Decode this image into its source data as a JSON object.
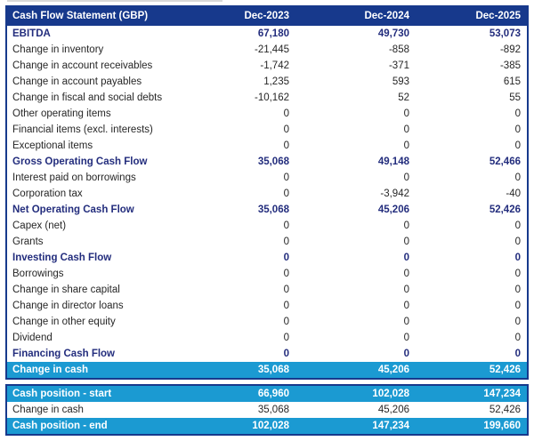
{
  "header": {
    "title": "Cash Flow Statement (GBP)",
    "columns": [
      "Dec-2023",
      "Dec-2024",
      "Dec-2025"
    ]
  },
  "rows": [
    {
      "label": "EBITDA",
      "values": [
        "67,180",
        "49,730",
        "53,073"
      ],
      "style": "bold"
    },
    {
      "label": "Change in inventory",
      "values": [
        "-21,445",
        "-858",
        "-892"
      ],
      "style": "normal"
    },
    {
      "label": "Change in account receivables",
      "values": [
        "-1,742",
        "-371",
        "-385"
      ],
      "style": "normal"
    },
    {
      "label": "Change in account payables",
      "values": [
        "1,235",
        "593",
        "615"
      ],
      "style": "normal"
    },
    {
      "label": "Change in fiscal and social debts",
      "values": [
        "-10,162",
        "52",
        "55"
      ],
      "style": "normal"
    },
    {
      "label": "Other operating items",
      "values": [
        "0",
        "0",
        "0"
      ],
      "style": "normal"
    },
    {
      "label": "Financial items (excl. interests)",
      "values": [
        "0",
        "0",
        "0"
      ],
      "style": "normal"
    },
    {
      "label": "Exceptional items",
      "values": [
        "0",
        "0",
        "0"
      ],
      "style": "normal"
    },
    {
      "label": "Gross Operating Cash Flow",
      "values": [
        "35,068",
        "49,148",
        "52,466"
      ],
      "style": "bold"
    },
    {
      "label": "Interest paid on borrowings",
      "values": [
        "0",
        "0",
        "0"
      ],
      "style": "normal"
    },
    {
      "label": "Corporation tax",
      "values": [
        "0",
        "-3,942",
        "-40"
      ],
      "style": "normal"
    },
    {
      "label": "Net Operating Cash Flow",
      "values": [
        "35,068",
        "45,206",
        "52,426"
      ],
      "style": "bold"
    },
    {
      "label": "Capex (net)",
      "values": [
        "0",
        "0",
        "0"
      ],
      "style": "normal"
    },
    {
      "label": "Grants",
      "values": [
        "0",
        "0",
        "0"
      ],
      "style": "normal"
    },
    {
      "label": "Investing Cash Flow",
      "values": [
        "0",
        "0",
        "0"
      ],
      "style": "bold"
    },
    {
      "label": "Borrowings",
      "values": [
        "0",
        "0",
        "0"
      ],
      "style": "normal"
    },
    {
      "label": "Change in share capital",
      "values": [
        "0",
        "0",
        "0"
      ],
      "style": "normal"
    },
    {
      "label": "Change in director loans",
      "values": [
        "0",
        "0",
        "0"
      ],
      "style": "normal"
    },
    {
      "label": "Change in other equity",
      "values": [
        "0",
        "0",
        "0"
      ],
      "style": "normal"
    },
    {
      "label": "Dividend",
      "values": [
        "0",
        "0",
        "0"
      ],
      "style": "normal"
    },
    {
      "label": "Financing Cash Flow",
      "values": [
        "0",
        "0",
        "0"
      ],
      "style": "bold"
    },
    {
      "label": "Change in cash",
      "values": [
        "35,068",
        "45,206",
        "52,426"
      ],
      "style": "highlight"
    }
  ],
  "summary_rows": [
    {
      "label": "Cash position - start",
      "values": [
        "66,960",
        "102,028",
        "147,234"
      ],
      "style": "highlight"
    },
    {
      "label": "Change in cash",
      "values": [
        "35,068",
        "45,206",
        "52,426"
      ],
      "style": "normal"
    },
    {
      "label": "Cash position - end",
      "values": [
        "102,028",
        "147,234",
        "199,660"
      ],
      "style": "highlight"
    }
  ],
  "colors": {
    "header_bg": "#17398c",
    "border": "#17398c",
    "accent_text": "#232d7d",
    "highlight_bg": "#1b9ad2",
    "highlight_text": "#ffffff",
    "body_text": "#262626"
  }
}
